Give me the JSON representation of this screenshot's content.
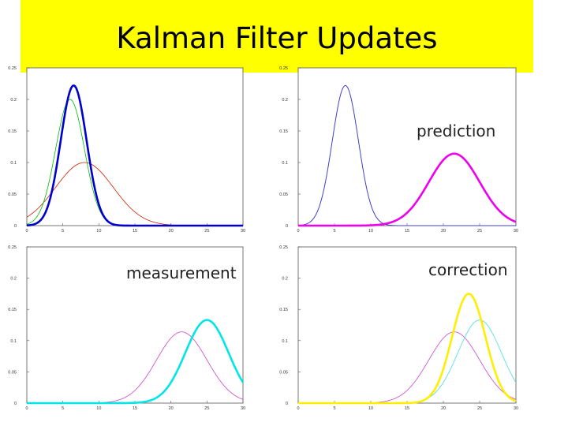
{
  "slide": {
    "title": "Kalman Filter Updates",
    "title_bg": "#ffff00"
  },
  "chart_data": [
    {
      "type": "line",
      "xlim": [
        0,
        30
      ],
      "ylim": [
        0,
        0.25
      ],
      "xticks": [
        "0",
        "5",
        "10",
        "15",
        "20",
        "25",
        "30"
      ],
      "yticks": [
        "0",
        "0.05",
        "0.1",
        "0.15",
        "0.2",
        "0.25"
      ],
      "annotation": "",
      "series": [
        {
          "color": "#cc2200",
          "width": 0.8,
          "mu": 8,
          "sigma": 4,
          "peak": 0.1
        },
        {
          "color": "#00bb00",
          "width": 0.8,
          "mu": 6,
          "sigma": 2,
          "peak": 0.2
        },
        {
          "color": "#0000cc",
          "width": 2.6,
          "mu": 6.5,
          "sigma": 1.8,
          "peak": 0.222
        }
      ]
    },
    {
      "type": "line",
      "xlim": [
        0,
        30
      ],
      "ylim": [
        0,
        0.25
      ],
      "xticks": [
        "0",
        "5",
        "10",
        "15",
        "20",
        "25",
        "30"
      ],
      "yticks": [
        "0",
        "0.05",
        "0.1",
        "0.15",
        "0.2",
        "0.25"
      ],
      "annotation": "prediction",
      "series": [
        {
          "color": "#4040cc",
          "width": 1.0,
          "mu": 6.5,
          "sigma": 1.8,
          "peak": 0.222
        },
        {
          "color": "#ee00ee",
          "width": 2.6,
          "mu": 21.5,
          "sigma": 3.5,
          "peak": 0.114
        }
      ]
    },
    {
      "type": "line",
      "xlim": [
        0,
        30
      ],
      "ylim": [
        0,
        0.25
      ],
      "xticks": [
        "0",
        "5",
        "10",
        "15",
        "20",
        "25",
        "30"
      ],
      "yticks": [
        "0",
        "0.05",
        "0.1",
        "0.15",
        "0.2",
        "0.25"
      ],
      "annotation": "measurement",
      "series": [
        {
          "color": "#cc44cc",
          "width": 0.8,
          "mu": 21.5,
          "sigma": 3.5,
          "peak": 0.114
        },
        {
          "color": "#00e5e5",
          "width": 2.6,
          "mu": 25,
          "sigma": 3,
          "peak": 0.133
        }
      ]
    },
    {
      "type": "line",
      "xlim": [
        0,
        30
      ],
      "ylim": [
        0,
        0.25
      ],
      "xticks": [
        "0",
        "5",
        "10",
        "15",
        "20",
        "25",
        "30"
      ],
      "yticks": [
        "0",
        "0.05",
        "0.1",
        "0.15",
        "0.2",
        "0.25"
      ],
      "annotation": "correction",
      "series": [
        {
          "color": "#cc44cc",
          "width": 0.8,
          "mu": 21.5,
          "sigma": 3.5,
          "peak": 0.114
        },
        {
          "color": "#44dddd",
          "width": 0.8,
          "mu": 25,
          "sigma": 3,
          "peak": 0.133
        },
        {
          "color": "#ffee00",
          "width": 2.6,
          "mu": 23.5,
          "sigma": 2.3,
          "peak": 0.175
        }
      ]
    }
  ]
}
